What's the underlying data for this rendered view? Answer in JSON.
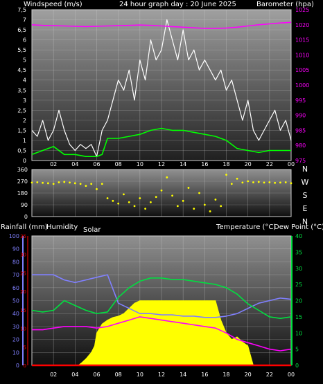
{
  "header": {
    "windspeed_label": "Windspeed (m/s)",
    "title": "24 hour graph day : 20 June 2025",
    "barometer_label": "Barometer (hpa)"
  },
  "lower_header": {
    "rainfall_label": "Rainfall (mm)",
    "humidity_label": "Humidity",
    "solar_label": "Solar",
    "temperature_label": "Temperature (°C)",
    "dewpoint_label": "Dew Point (°C)"
  },
  "colors": {
    "barometer": "#ff00ff",
    "wind_gust": "#ffffff",
    "wind_avg": "#00ff00",
    "direction": "#ffff00",
    "humidity": "#8080ff",
    "temperature": "#00e040",
    "dewpoint": "#ff00ff",
    "solar": "#ffff00",
    "rain": "#ff0000"
  },
  "chart_data": [
    {
      "type": "line",
      "name": "wind-barometer",
      "title": "24 hour graph day : 20 June 2025",
      "x_tick_labels": [
        "02",
        "04",
        "06",
        "08",
        "10",
        "12",
        "14",
        "16",
        "18",
        "20",
        "22",
        "00"
      ],
      "y_left_ticks": [
        "0",
        "0,5",
        "1",
        "1,5",
        "2",
        "2,5",
        "3",
        "3,5",
        "4",
        "4,5",
        "5",
        "5,5",
        "6",
        "6,5",
        "7",
        "7,5"
      ],
      "y_left_range": [
        0,
        7.5
      ],
      "y_right_ticks": [
        "975",
        "980",
        "985",
        "990",
        "995",
        "1000",
        "1005",
        "1010",
        "1015",
        "1020",
        "1025"
      ],
      "y_right_range": [
        975,
        1025
      ],
      "series": [
        {
          "name": "Windspeed (m/s)",
          "role": "gust",
          "axis": "left",
          "x": [
            0,
            0.5,
            1,
            1.5,
            2,
            2.5,
            3,
            3.5,
            4,
            4.5,
            5,
            5.5,
            6,
            6.5,
            7,
            7.5,
            8,
            8.5,
            9,
            9.5,
            10,
            10.5,
            11,
            11.5,
            12,
            12.5,
            13,
            13.5,
            14,
            14.5,
            15,
            15.5,
            16,
            16.5,
            17,
            17.5,
            18,
            18.5,
            19,
            19.5,
            20,
            20.5,
            21,
            21.5,
            22,
            22.5,
            23,
            23.5,
            24
          ],
          "values": [
            1.5,
            1.2,
            2,
            1,
            1.5,
            2.5,
            1.5,
            0.8,
            0.5,
            0.8,
            0.6,
            0.8,
            0.2,
            1.5,
            2,
            3,
            4,
            3.5,
            4.5,
            3,
            5,
            4,
            6,
            5,
            5.5,
            7,
            6,
            5,
            6.5,
            5,
            5.5,
            4.5,
            5,
            4.5,
            4,
            4.5,
            3.5,
            4,
            3,
            2,
            3,
            1.5,
            1,
            1.5,
            2,
            2.5,
            1.5,
            2,
            1
          ]
        },
        {
          "name": "Windspeed avg",
          "role": "avg",
          "axis": "left",
          "x": [
            0,
            1,
            2,
            3,
            4,
            5,
            6,
            6.5,
            7,
            8,
            9,
            10,
            11,
            12,
            13,
            14,
            15,
            16,
            17,
            18,
            19,
            20,
            21,
            22,
            23,
            24
          ],
          "values": [
            0.3,
            0.5,
            0.7,
            0.3,
            0.3,
            0.2,
            0.2,
            0.3,
            1.1,
            1.1,
            1.2,
            1.3,
            1.5,
            1.6,
            1.5,
            1.5,
            1.4,
            1.3,
            1.2,
            1,
            0.6,
            0.5,
            0.4,
            0.5,
            0.5,
            0.5
          ]
        },
        {
          "name": "Barometer (hpa)",
          "role": "baro",
          "axis": "right",
          "x": [
            0,
            1,
            2,
            3,
            4,
            5,
            6,
            7,
            8,
            9,
            10,
            11,
            12,
            13,
            14,
            15,
            16,
            17,
            18,
            19,
            20,
            21,
            22,
            23,
            24
          ],
          "values": [
            1020,
            1019.8,
            1019.7,
            1019.6,
            1019.5,
            1019.4,
            1019.5,
            1019.6,
            1019.7,
            1019.8,
            1019.9,
            1019.8,
            1019.6,
            1019.4,
            1019.2,
            1019,
            1018.8,
            1018.8,
            1018.9,
            1019.2,
            1019.6,
            1020,
            1020.3,
            1020.6,
            1020.8
          ]
        }
      ]
    },
    {
      "type": "scatter",
      "name": "wind-direction",
      "y_left_ticks": [
        "0",
        "90",
        "180",
        "270",
        "360"
      ],
      "y_range": [
        0,
        360
      ],
      "y_right_labels": [
        "N",
        "W",
        "S",
        "E",
        "N"
      ],
      "series": [
        {
          "name": "Wind direction",
          "x": [
            0,
            0.5,
            1,
            1.5,
            2,
            2.5,
            3,
            3.5,
            4,
            4.5,
            5,
            5.5,
            6,
            6.5,
            7,
            7.5,
            8,
            8.5,
            9,
            9.5,
            10,
            10.5,
            11,
            11.5,
            12,
            12.5,
            13,
            13.5,
            14,
            14.5,
            15,
            15.5,
            16,
            16.5,
            17,
            17.5,
            18,
            18.5,
            19,
            19.5,
            20,
            20.5,
            21,
            21.5,
            22,
            22.5,
            23,
            23.5,
            24
          ],
          "values": [
            260,
            262,
            258,
            255,
            250,
            262,
            265,
            260,
            255,
            250,
            235,
            250,
            210,
            250,
            140,
            120,
            100,
            170,
            110,
            80,
            140,
            60,
            110,
            150,
            200,
            300,
            160,
            80,
            120,
            220,
            60,
            180,
            90,
            40,
            130,
            80,
            320,
            250,
            290,
            260,
            270,
            262,
            265,
            260,
            262,
            258,
            260,
            262,
            255
          ]
        }
      ]
    },
    {
      "type": "line",
      "name": "temperature-humidity",
      "x_tick_labels": [
        "02",
        "04",
        "06",
        "08",
        "10",
        "12",
        "14",
        "16",
        "18",
        "20",
        "22",
        "00"
      ],
      "y_humidity_ticks": [
        "0",
        "10",
        "20",
        "30",
        "40",
        "50",
        "60",
        "70",
        "80",
        "90",
        "100"
      ],
      "y_humidity_range": [
        0,
        100
      ],
      "y_rain_ticks": [
        "0",
        "5",
        "10",
        "15",
        "20",
        "25",
        "30",
        "35"
      ],
      "y_rain_range": [
        0,
        35
      ],
      "y_temp_ticks": [
        "0",
        "5",
        "10",
        "15",
        "20",
        "25",
        "30",
        "35",
        "40"
      ],
      "y_temp_range": [
        0,
        40
      ],
      "series": [
        {
          "name": "Humidity",
          "axis": "humidity",
          "x": [
            0,
            1,
            2,
            3,
            4,
            5,
            6,
            7,
            8,
            9,
            10,
            11,
            12,
            13,
            14,
            15,
            16,
            17,
            18,
            19,
            20,
            21,
            22,
            23,
            24
          ],
          "values": [
            70,
            70,
            70,
            66,
            64,
            66,
            68,
            70,
            48,
            44,
            40,
            40,
            39,
            39,
            38,
            38,
            37,
            37,
            38,
            40,
            44,
            48,
            50,
            52,
            51
          ]
        },
        {
          "name": "Temperature (°C)",
          "axis": "temp",
          "x": [
            0,
            1,
            2,
            3,
            4,
            5,
            6,
            7,
            8,
            9,
            10,
            11,
            12,
            13,
            14,
            15,
            16,
            17,
            18,
            19,
            20,
            21,
            22,
            23,
            24
          ],
          "values": [
            17,
            16.5,
            17,
            20,
            18.5,
            17,
            16,
            16.5,
            21,
            24,
            26,
            27,
            27,
            26.5,
            26.5,
            26,
            25.5,
            25,
            24,
            22,
            19,
            17,
            15,
            14.5,
            15
          ]
        },
        {
          "name": "Dew Point (°C)",
          "axis": "temp",
          "x": [
            0,
            1,
            2,
            3,
            4,
            5,
            6,
            7,
            8,
            9,
            10,
            11,
            12,
            13,
            14,
            15,
            16,
            17,
            18,
            19,
            20,
            21,
            22,
            23,
            24
          ],
          "values": [
            11,
            11,
            11.5,
            12,
            12,
            12,
            11.5,
            12,
            13,
            14,
            15,
            14.5,
            14,
            13.5,
            13,
            12.5,
            12,
            11.5,
            10,
            8,
            7,
            6,
            5,
            4.5,
            5
          ]
        },
        {
          "name": "Solar",
          "role": "area",
          "axis": "humidity",
          "x": [
            0,
            4.3,
            4.6,
            5,
            5.5,
            5.8,
            6,
            6.5,
            7,
            7.5,
            8,
            8.5,
            9,
            9.5,
            10,
            11,
            12,
            13,
            14,
            15,
            16,
            17,
            17.5,
            18,
            18.5,
            19,
            19.5,
            20,
            20.5,
            24
          ],
          "values": [
            0,
            0,
            2,
            5,
            10,
            15,
            25,
            32,
            35,
            37,
            38,
            40,
            44,
            48,
            50,
            50,
            50,
            50,
            50,
            50,
            50,
            50,
            35,
            25,
            20,
            22,
            18,
            15,
            0,
            0
          ]
        },
        {
          "name": "Rainfall (mm)",
          "axis": "rain",
          "x": [
            0,
            24
          ],
          "values": [
            0,
            0
          ]
        }
      ]
    }
  ]
}
